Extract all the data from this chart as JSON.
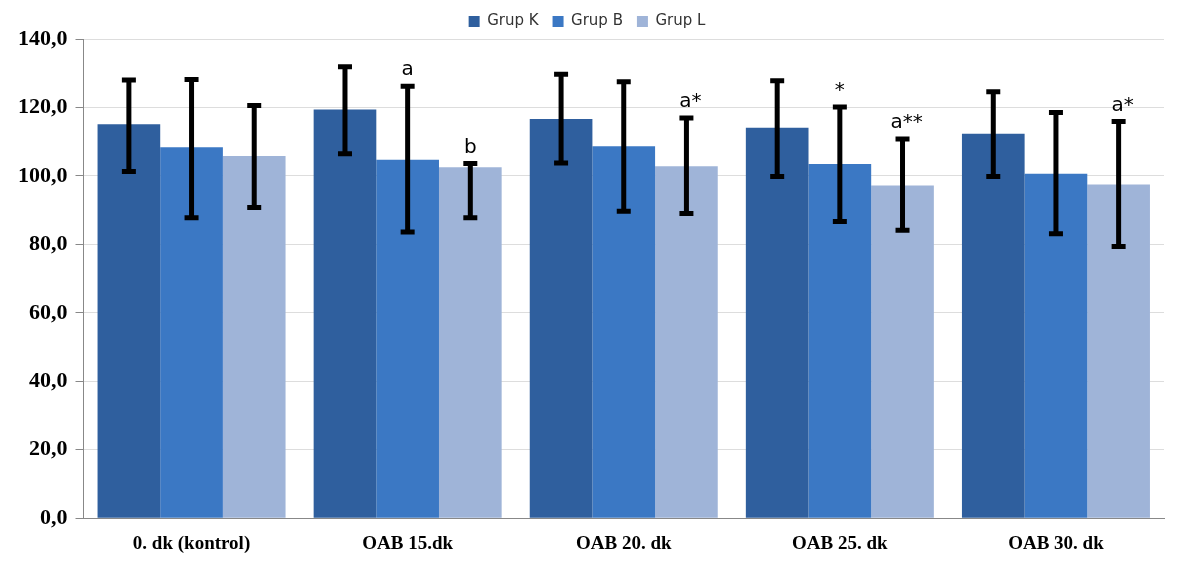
{
  "chart_data": {
    "type": "bar",
    "categories": [
      "0. dk (kontrol)",
      "OAB 15.dk",
      "OAB 20. dk",
      "OAB 25. dk",
      "OAB 30. dk"
    ],
    "series": [
      {
        "name": "Grup K",
        "color": "#2f5f9e",
        "values": [
          115.1,
          119.4,
          116.6,
          114.1,
          112.3
        ],
        "errors": [
          [
            101.3,
            128.0
          ],
          [
            106.5,
            131.9
          ],
          [
            103.8,
            129.7
          ],
          [
            99.8,
            127.8
          ],
          [
            99.8,
            124.6
          ]
        ]
      },
      {
        "name": "Grup B",
        "color": "#3b78c4",
        "values": [
          108.4,
          104.7,
          108.7,
          103.5,
          100.6
        ],
        "errors": [
          [
            87.8,
            128.2
          ],
          [
            83.6,
            126.2
          ],
          [
            89.7,
            127.5
          ],
          [
            86.7,
            120.1
          ],
          [
            83.1,
            118.5
          ]
        ]
      },
      {
        "name": "Grup L",
        "color": "#9fb4d8",
        "values": [
          105.8,
          102.5,
          102.8,
          97.2,
          97.5
        ],
        "errors": [
          [
            90.8,
            120.6
          ],
          [
            87.8,
            103.6
          ],
          [
            89.0,
            116.9
          ],
          [
            84.1,
            110.8
          ],
          [
            79.4,
            115.9
          ]
        ]
      }
    ],
    "ylim": [
      0,
      140
    ],
    "yticks": [
      {
        "value": 0,
        "label": "0,0"
      },
      {
        "value": 20,
        "label": "20,0"
      },
      {
        "value": 40,
        "label": "40,0"
      },
      {
        "value": 60,
        "label": "60,0"
      },
      {
        "value": 80,
        "label": "80,0"
      },
      {
        "value": 100,
        "label": "100,0"
      },
      {
        "value": 120,
        "label": "120,0"
      },
      {
        "value": 140,
        "label": "140,0"
      }
    ],
    "grid": "y",
    "legend": "top",
    "annotations": [
      {
        "text": "a",
        "x": "OAB 15.dk",
        "y": 126.2
      },
      {
        "text": "b",
        "x": "OAB 15.dk",
        "y": 103.6
      },
      {
        "text": "a*",
        "x": "OAB 20. dk",
        "y": 116.9
      },
      {
        "text": "*",
        "x": "OAB 25. dk",
        "y": 120.1
      },
      {
        "text": "a**",
        "x": "OAB 25. dk",
        "y": 110.8
      },
      {
        "text": "a*",
        "x": "OAB 30. dk",
        "y": 115.9
      }
    ]
  }
}
